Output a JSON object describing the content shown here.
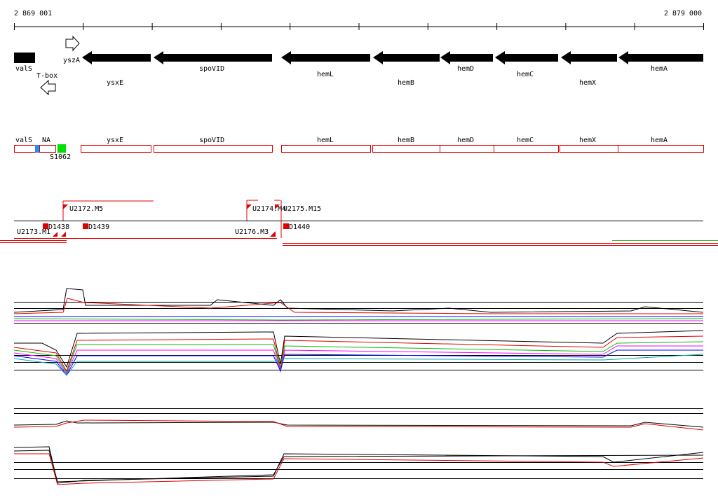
{
  "ruler": {
    "start": "2 869 001",
    "end": "2 879 000"
  },
  "genes": [
    "valS",
    "yszA",
    "T-box",
    "ysxE",
    "spoVID",
    "hemL",
    "hemB",
    "hemD",
    "hemC",
    "hemX",
    "hemA"
  ],
  "transcripts": [
    "valS",
    "NA",
    "S1062",
    "ysxE",
    "spoVID",
    "hemL",
    "hemB",
    "hemD",
    "hemC",
    "hemX",
    "hemA"
  ],
  "regulatory": [
    "U2172.M5",
    "U2174.M4",
    "U2175.M15",
    "D1438",
    "D1439",
    "D1440",
    "U2176.M3",
    "U2173.M1"
  ]
}
